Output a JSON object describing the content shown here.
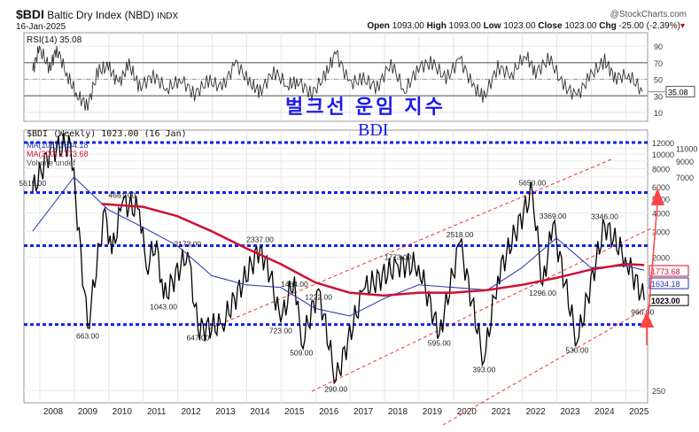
{
  "header": {
    "symbol": "$BDI",
    "name": "Baltic Dry Index (NBD)",
    "exchange": "INDX",
    "date": "16-Jan-2025",
    "brand": "@StockCharts.com",
    "open_label": "Open",
    "open": "1093.00",
    "high_label": "High",
    "high": "1093.00",
    "low_label": "Low",
    "low": "1023.00",
    "close_label": "Close",
    "close": "1023.00",
    "chg_label": "Chg",
    "chg": "-25.00 (-2.39%)"
  },
  "annotation": {
    "korean": "벌크선 운임 지수",
    "english": "BDI"
  },
  "colors": {
    "price": "#000000",
    "ma100": "#2233aa",
    "ma300": "#cc1133",
    "hline": "#1122ee",
    "channel": "#ee3333"
  },
  "chart_data": [
    {
      "type": "line",
      "title": "RSI(14) 35.08",
      "ylim": [
        0,
        100
      ],
      "yticks": [
        "90",
        "70",
        "50",
        "30",
        "10"
      ],
      "overbought": 70,
      "oversold": 30,
      "last": "35.08",
      "x": [
        2007.3,
        2007.5,
        2007.8,
        2008.0,
        2008.3,
        2008.6,
        2008.9,
        2009.2,
        2009.5,
        2009.8,
        2010.1,
        2010.4,
        2010.8,
        2011.2,
        2011.6,
        2012.0,
        2012.4,
        2012.8,
        2013.2,
        2013.6,
        2013.9,
        2014.3,
        2014.7,
        2015.0,
        2015.4,
        2015.8,
        2016.1,
        2016.5,
        2016.9,
        2017.3,
        2017.7,
        2018.1,
        2018.5,
        2018.9,
        2019.3,
        2019.7,
        2020.1,
        2020.4,
        2020.8,
        2021.2,
        2021.6,
        2021.9,
        2022.3,
        2022.7,
        2023.1,
        2023.5,
        2023.9,
        2024.2,
        2024.6,
        2025.0
      ],
      "y": [
        60,
        88,
        62,
        88,
        55,
        30,
        18,
        60,
        65,
        45,
        68,
        40,
        55,
        38,
        50,
        32,
        48,
        40,
        70,
        45,
        35,
        60,
        42,
        48,
        32,
        55,
        82,
        45,
        50,
        40,
        70,
        35,
        65,
        70,
        50,
        75,
        40,
        28,
        65,
        55,
        80,
        58,
        75,
        42,
        30,
        55,
        72,
        52,
        55,
        35
      ]
    },
    {
      "type": "line",
      "title": "$BDI (Weekly) 1023.00 (16 Jan)",
      "scale": "log",
      "ylim": [
        250,
        12000
      ],
      "yticks": [
        "12000",
        "11000",
        "10000",
        "9000",
        "8000",
        "7000",
        "6000",
        "5000",
        "4000",
        "3000",
        "2000",
        "250"
      ],
      "xticks": [
        "2008",
        "2009",
        "2010",
        "2011",
        "2012",
        "2013",
        "2014",
        "2015",
        "2016",
        "2017",
        "2018",
        "2019",
        "2020",
        "2021",
        "2022",
        "2023",
        "2024",
        "2025"
      ],
      "legend": [
        "MA(100) 1634.18",
        "MA(300) 1773.68",
        "Volume undef"
      ],
      "series": [
        {
          "name": "$BDI",
          "x": [
            2007.3,
            2007.8,
            2008.4,
            2008.9,
            2009.4,
            2009.6,
            2009.9,
            2010.4,
            2010.6,
            2010.9,
            2011.1,
            2011.8,
            2012.1,
            2012.8,
            2013.9,
            2014.2,
            2014.5,
            2014.9,
            2015.1,
            2015.6,
            2016.1,
            2016.9,
            2017.9,
            2018.5,
            2019.1,
            2019.7,
            2020.4,
            2020.8,
            2021.8,
            2022.1,
            2022.4,
            2023.1,
            2023.9,
            2024.5,
            2025.05
          ],
          "y": [
            5615,
            10500,
            11793,
            663,
            4291,
            2100,
            4661,
            4209,
            1700,
            2600,
            1043,
            2173,
            647,
            700,
            2337,
            1484,
            723,
            1484,
            509,
            1222,
            290,
            1200,
            1773,
            1773,
            595,
            2518,
            393,
            1500,
            5650,
            1296,
            3369,
            530,
            3346,
            2000,
            1023
          ]
        },
        {
          "name": "MA(100)",
          "x": [
            2007.3,
            2008.5,
            2009.5,
            2010.5,
            2011.5,
            2012.5,
            2013.5,
            2014.5,
            2015.5,
            2016.5,
            2017.5,
            2018.5,
            2019.5,
            2020.5,
            2021.5,
            2022.5,
            2023.5,
            2024.5,
            2025.05
          ],
          "y": [
            3000,
            7000,
            4200,
            3200,
            2400,
            1500,
            1300,
            1250,
            900,
            800,
            1050,
            1300,
            1250,
            1200,
            1700,
            2700,
            1700,
            1750,
            1634
          ]
        },
        {
          "name": "MA(300)",
          "x": [
            2009.3,
            2010.5,
            2011.5,
            2012.5,
            2013.5,
            2014.5,
            2015.5,
            2016.5,
            2017.5,
            2018.5,
            2019.5,
            2020.5,
            2021.5,
            2022.5,
            2023.5,
            2024.5,
            2025.05
          ],
          "y": [
            4600,
            4400,
            3800,
            3000,
            2300,
            1800,
            1350,
            1150,
            1100,
            1150,
            1150,
            1200,
            1300,
            1450,
            1650,
            1800,
            1773
          ]
        }
      ],
      "point_labels": [
        {
          "x": 2007.3,
          "text": "5615.00"
        },
        {
          "x": 2008.9,
          "text": "663.00"
        },
        {
          "x": 2009.9,
          "text": "4661.00"
        },
        {
          "x": 2011.1,
          "text": "1043.00"
        },
        {
          "x": 2011.8,
          "text": "2173.00"
        },
        {
          "x": 2012.1,
          "text": "647.00"
        },
        {
          "x": 2013.9,
          "text": "2337.00"
        },
        {
          "x": 2014.5,
          "text": "723.00"
        },
        {
          "x": 2014.9,
          "text": "1484.00"
        },
        {
          "x": 2015.1,
          "text": "509.00"
        },
        {
          "x": 2015.6,
          "text": "1222.00"
        },
        {
          "x": 2016.1,
          "text": "290.00"
        },
        {
          "x": 2017.9,
          "text": "1773.00"
        },
        {
          "x": 2019.1,
          "text": "595.00"
        },
        {
          "x": 2019.7,
          "text": "2518.00"
        },
        {
          "x": 2020.4,
          "text": "393.00"
        },
        {
          "x": 2021.8,
          "text": "5650.00"
        },
        {
          "x": 2022.1,
          "text": "1296.00"
        },
        {
          "x": 2022.4,
          "text": "3369.00"
        },
        {
          "x": 2023.1,
          "text": "530.00"
        },
        {
          "x": 2023.9,
          "text": "3346.00"
        },
        {
          "x": 2025.0,
          "text": "966.00"
        }
      ],
      "right_labels": {
        "ma300": "1773.68",
        "ma100": "1634.18",
        "close": "1023.00"
      },
      "hlines": [
        12000,
        5500,
        2400,
        700
      ]
    }
  ]
}
